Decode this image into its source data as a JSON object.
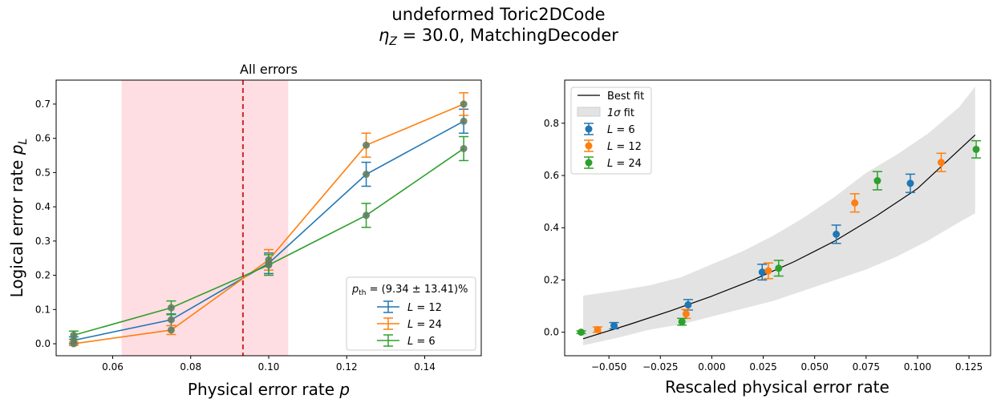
{
  "figure": {
    "suptitle_line1": "undeformed Toric2DCode",
    "suptitle_eta": "η",
    "suptitle_eta_sub": "Z",
    "suptitle_rest": " = 30.0, MatchingDecoder"
  },
  "chart_data": [
    {
      "type": "line",
      "title": "All errors",
      "xlabel_text": "Physical error rate ",
      "xlabel_var": "p",
      "ylabel_text": "Logical error rate ",
      "ylabel_var": "p",
      "ylabel_sub": "L",
      "xlim": [
        0.0455,
        0.1545
      ],
      "ylim": [
        -0.035,
        0.77
      ],
      "xticks": [
        0.06,
        0.08,
        0.1,
        0.12,
        0.14
      ],
      "xtick_labels": [
        "0.06",
        "0.08",
        "0.10",
        "0.12",
        "0.14"
      ],
      "yticks": [
        0.0,
        0.1,
        0.2,
        0.3,
        0.4,
        0.5,
        0.6,
        0.7
      ],
      "ytick_labels": [
        "0.0",
        "0.1",
        "0.2",
        "0.3",
        "0.4",
        "0.5",
        "0.6",
        "0.7"
      ],
      "threshold": {
        "value": 0.0934,
        "band": [
          0.0623,
          0.105
        ],
        "line_color": "#d62728",
        "band_color": "#ffb6c1",
        "label": "p",
        "label_sub": "th",
        "label_rest": " = (9.34 ± 13.41)%"
      },
      "legend_position": "lower-right",
      "series": [
        {
          "name": "L = 12",
          "name_var": "L",
          "name_rest": " = 12",
          "color": "#1f77b4",
          "x": [
            0.05,
            0.075,
            0.1,
            0.125,
            0.15
          ],
          "y": [
            0.01,
            0.07,
            0.235,
            0.495,
            0.65
          ],
          "err": [
            0.01,
            0.017,
            0.03,
            0.035,
            0.035
          ]
        },
        {
          "name": "L = 24",
          "name_var": "L",
          "name_rest": " = 24",
          "color": "#ff7f0e",
          "x": [
            0.05,
            0.075,
            0.1,
            0.125,
            0.15
          ],
          "y": [
            0.0,
            0.04,
            0.245,
            0.58,
            0.7
          ],
          "err": [
            0.005,
            0.013,
            0.03,
            0.035,
            0.033
          ]
        },
        {
          "name": "L = 6",
          "name_var": "L",
          "name_rest": " = 6",
          "color": "#2ca02c",
          "x": [
            0.05,
            0.075,
            0.1,
            0.125,
            0.15
          ],
          "y": [
            0.025,
            0.105,
            0.23,
            0.375,
            0.57
          ],
          "err": [
            0.012,
            0.02,
            0.03,
            0.035,
            0.035
          ]
        }
      ],
      "marker_color": "#5f7f5f"
    },
    {
      "type": "scatter",
      "title": "",
      "xlabel": "Rescaled physical error rate",
      "ylabel": "",
      "xlim": [
        -0.0715,
        0.1355
      ],
      "ylim": [
        -0.09,
        0.965
      ],
      "xticks": [
        -0.05,
        -0.025,
        0.0,
        0.025,
        0.05,
        0.075,
        0.1,
        0.125
      ],
      "xtick_labels": [
        "−0.050",
        "−0.025",
        "0.000",
        "0.025",
        "0.050",
        "0.075",
        "0.100",
        "0.125"
      ],
      "yticks": [
        0.0,
        0.2,
        0.4,
        0.6,
        0.8
      ],
      "ytick_labels": [
        "0.0",
        "0.2",
        "0.4",
        "0.6",
        "0.8"
      ],
      "legend_position": "upper-left",
      "best_fit": {
        "name": "Best fit",
        "color": "#000000",
        "x": [
          -0.0625,
          -0.04,
          -0.02,
          0.0,
          0.02,
          0.04,
          0.06,
          0.08,
          0.1,
          0.128
        ],
        "y": [
          -0.025,
          0.03,
          0.082,
          0.138,
          0.2,
          0.27,
          0.35,
          0.445,
          0.55,
          0.755
        ]
      },
      "sigma_band": {
        "name": "1σ fit",
        "name_var": "1σ",
        "name_rest": " fit",
        "color": "#e3e3e3",
        "x": [
          -0.0625,
          -0.045,
          -0.03,
          -0.015,
          0.0,
          0.015,
          0.03,
          0.045,
          0.06,
          0.075,
          0.09,
          0.105,
          0.12,
          0.128
        ],
        "upper": [
          0.14,
          0.16,
          0.18,
          0.21,
          0.26,
          0.31,
          0.37,
          0.44,
          0.52,
          0.61,
          0.68,
          0.76,
          0.86,
          0.94
        ],
        "lower": [
          -0.05,
          -0.02,
          0.01,
          0.03,
          0.06,
          0.09,
          0.12,
          0.16,
          0.2,
          0.24,
          0.29,
          0.35,
          0.42,
          0.455
        ]
      },
      "series": [
        {
          "name": "L = 6",
          "name_var": "L",
          "name_rest": " = 6",
          "color": "#1f77b4",
          "x": [
            -0.0475,
            -0.0115,
            0.0245,
            0.0605,
            0.0965
          ],
          "y": [
            0.025,
            0.105,
            0.23,
            0.375,
            0.57
          ],
          "err": [
            0.012,
            0.02,
            0.03,
            0.035,
            0.035
          ]
        },
        {
          "name": "L = 12",
          "name_var": "L",
          "name_rest": " = 12",
          "color": "#ff7f0e",
          "x": [
            -0.0555,
            -0.0125,
            0.0275,
            0.0695,
            0.1115
          ],
          "y": [
            0.01,
            0.07,
            0.235,
            0.495,
            0.65
          ],
          "err": [
            0.01,
            0.017,
            0.03,
            0.035,
            0.035
          ]
        },
        {
          "name": "L = 24",
          "name_var": "L",
          "name_rest": " = 24",
          "color": "#2ca02c",
          "x": [
            -0.0635,
            -0.0145,
            0.0325,
            0.0805,
            0.1285
          ],
          "y": [
            0.0,
            0.04,
            0.245,
            0.58,
            0.7
          ],
          "err": [
            0.005,
            0.013,
            0.03,
            0.035,
            0.033
          ]
        }
      ]
    }
  ]
}
